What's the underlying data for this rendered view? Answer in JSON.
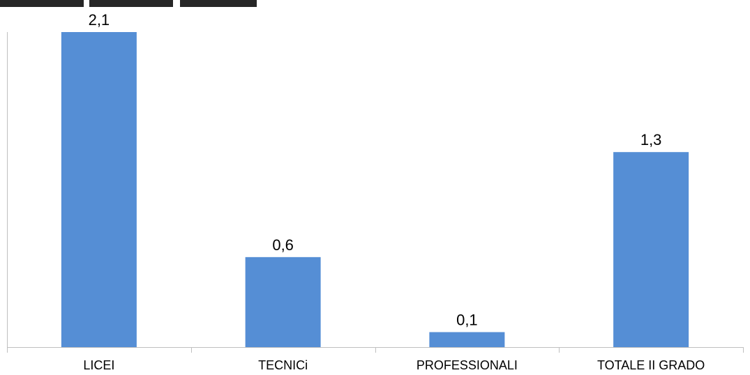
{
  "chart_data": {
    "type": "bar",
    "categories": [
      "LICEI",
      "TECNICi",
      "PROFESSIONALI",
      "TOTALE II GRADO"
    ],
    "values": [
      2.1,
      0.6,
      0.1,
      1.3
    ],
    "value_labels": [
      "2,1",
      "0,6",
      "0,1",
      "1,3"
    ],
    "title": "",
    "xlabel": "",
    "ylabel": "",
    "ylim": [
      0,
      2.1
    ],
    "grid": false,
    "legend": "none",
    "bar_color": "#558ED5",
    "axis_color": "#BFBFBF",
    "text_color": "#000000"
  }
}
